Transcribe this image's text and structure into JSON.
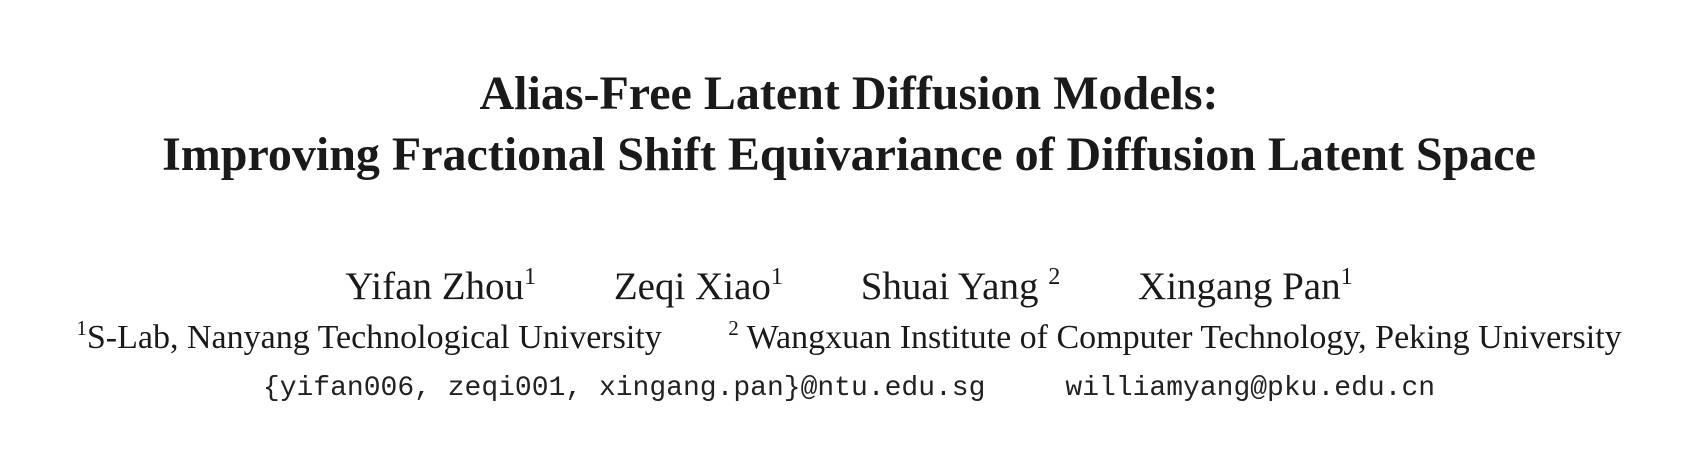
{
  "paper": {
    "title_line1": "Alias-Free Latent Diffusion Models:",
    "title_line2": "Improving Fractional Shift Equivariance of Diffusion Latent Space",
    "authors": [
      {
        "name": "Yifan Zhou",
        "affil_mark": "1"
      },
      {
        "name": "Zeqi Xiao",
        "affil_mark": "1"
      },
      {
        "name": "Shuai Yang ",
        "affil_mark": "2"
      },
      {
        "name": "Xingang Pan",
        "affil_mark": "1"
      }
    ],
    "affiliations": [
      {
        "mark": "1",
        "text": "S-Lab, Nanyang Technological University"
      },
      {
        "mark": "2",
        "text": " Wangxuan Institute of Computer Technology, Peking University"
      }
    ],
    "emails": [
      "{yifan006, zeqi001, xingang.pan}@ntu.edu.sg",
      "williamyang@pku.edu.cn"
    ]
  }
}
